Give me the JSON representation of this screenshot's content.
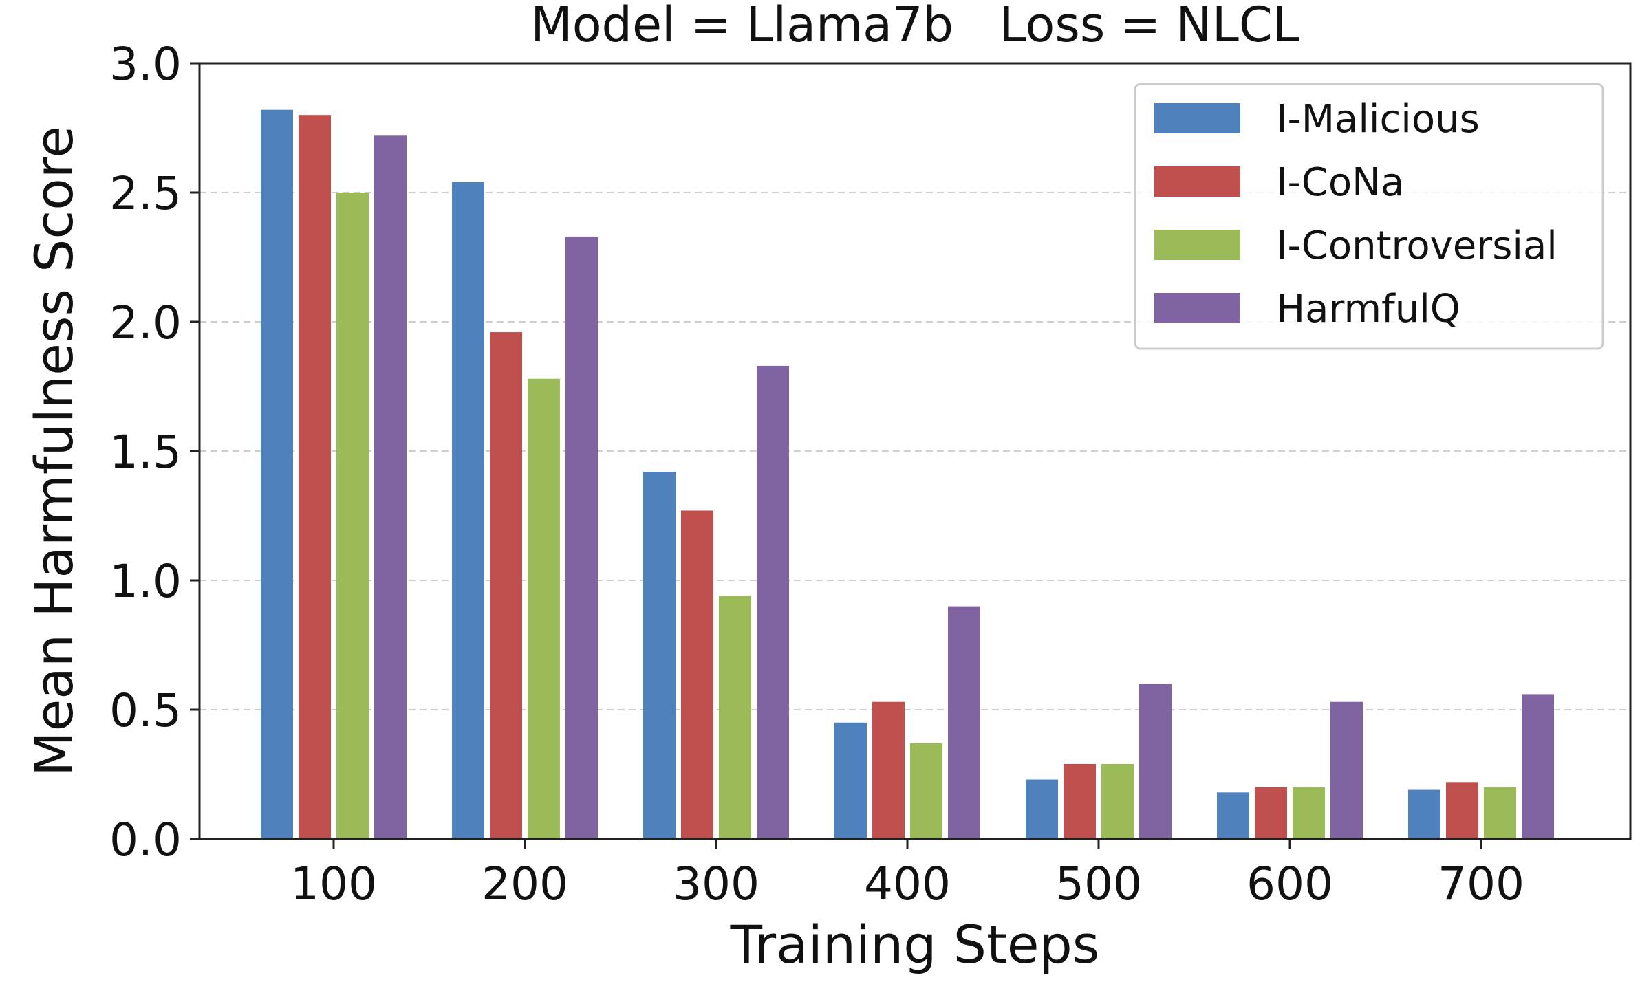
{
  "chart_data": {
    "type": "bar",
    "title": "Model = Llama7b   Loss = NLCL",
    "xlabel": "Training Steps",
    "ylabel": "Mean Harmfulness Score",
    "categories": [
      "100",
      "200",
      "300",
      "400",
      "500",
      "600",
      "700"
    ],
    "ylim": [
      0,
      3.0
    ],
    "yticks": [
      "0.0",
      "0.5",
      "1.0",
      "1.5",
      "2.0",
      "2.5",
      "3.0"
    ],
    "grid": "horizontal dashed",
    "legend_position": "top-right",
    "series": [
      {
        "name": "I-Malicious",
        "color": "#4f81bd",
        "values": [
          2.82,
          2.54,
          1.42,
          0.45,
          0.23,
          0.18,
          0.19
        ]
      },
      {
        "name": "I-CoNa",
        "color": "#c0504d",
        "values": [
          2.8,
          1.96,
          1.27,
          0.53,
          0.29,
          0.2,
          0.22
        ]
      },
      {
        "name": "I-Controversial",
        "color": "#9bbb59",
        "values": [
          2.5,
          1.78,
          0.94,
          0.37,
          0.29,
          0.2,
          0.2
        ]
      },
      {
        "name": "HarmfulQ",
        "color": "#8064a2",
        "values": [
          2.72,
          2.33,
          1.83,
          0.9,
          0.6,
          0.53,
          0.56
        ]
      }
    ]
  }
}
